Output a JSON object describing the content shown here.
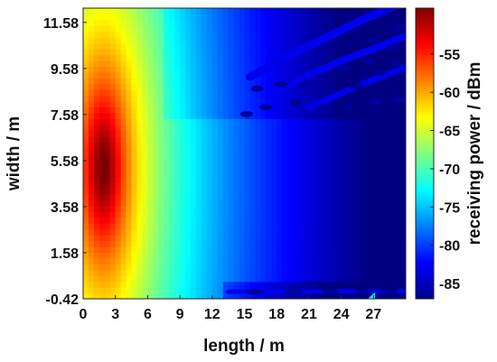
{
  "chart_data": {
    "type": "heatmap",
    "title": "",
    "xlabel": "length / m",
    "ylabel": "width / m",
    "colorbar_label": "receiving power / dBm",
    "xlim": [
      0,
      30
    ],
    "ylim": [
      -0.42,
      12.2
    ],
    "x_ticks": [
      0,
      3,
      6,
      9,
      12,
      15,
      18,
      21,
      24,
      27
    ],
    "x_tick_labels": [
      "0",
      "3",
      "6",
      "9",
      "12",
      "15",
      "18",
      "21",
      "24",
      "27"
    ],
    "y_ticks": [
      -0.42,
      1.58,
      3.58,
      5.58,
      7.58,
      9.58,
      11.58
    ],
    "y_tick_labels": [
      "-0.42",
      "1.58",
      "3.58",
      "5.58",
      "7.58",
      "9.58",
      "11.58"
    ],
    "colorbar_range": [
      -87,
      -49
    ],
    "colorbar_ticks": [
      -55,
      -60,
      -65,
      -70,
      -75,
      -80,
      -85
    ],
    "colorbar_tick_labels": [
      "-55",
      "-60",
      "-65",
      "-70",
      "-75",
      "-80",
      "-85"
    ],
    "colormap": "jet",
    "source_peak": {
      "x": 1.9,
      "y": 5.3,
      "power_dbm": -49
    },
    "power_at_far_end_dbm": -79,
    "grid": false
  }
}
